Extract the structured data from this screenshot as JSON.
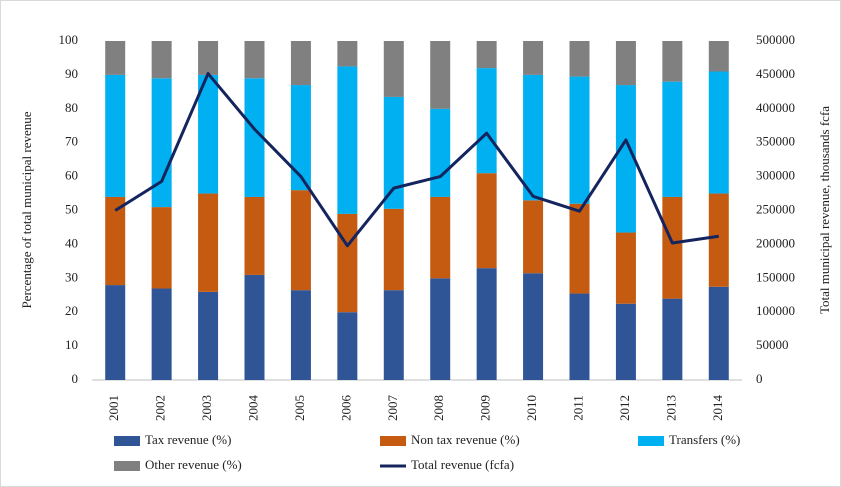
{
  "chart_data": {
    "type": "bar",
    "stacked": true,
    "y_label": "Percentage of total municipal revenue",
    "y2_label": "Total municipal revenue, thousands fcfa",
    "categories": [
      "2001",
      "2002",
      "2003",
      "2004",
      "2005",
      "2006",
      "2007",
      "2008",
      "2009",
      "2010",
      "2011",
      "2012",
      "2013",
      "2014"
    ],
    "ylim": [
      0,
      100
    ],
    "yticks": [
      0,
      10,
      20,
      30,
      40,
      50,
      60,
      70,
      80,
      90,
      100
    ],
    "y2lim": [
      0,
      500000
    ],
    "y2ticks": [
      0,
      50000,
      100000,
      150000,
      200000,
      250000,
      300000,
      350000,
      400000,
      450000,
      500000
    ],
    "grid": false,
    "series": [
      {
        "name": "Tax revenue (%)",
        "color": "#2f5597",
        "values": [
          28,
          27,
          26,
          31,
          26.5,
          20,
          26.5,
          30,
          33,
          31.5,
          25.5,
          22.5,
          24,
          27.5
        ]
      },
      {
        "name": "Non tax revenue (%)",
        "color": "#c55a11",
        "values": [
          26,
          24,
          29,
          23,
          29.5,
          29,
          24,
          24,
          28,
          21.5,
          26.5,
          21,
          30,
          27.5
        ]
      },
      {
        "name": "Transfers (%)",
        "color": "#00b0f0",
        "values": [
          36,
          38,
          35,
          35,
          31,
          43.5,
          33,
          26,
          31,
          37,
          37.5,
          43.5,
          34,
          36
        ]
      },
      {
        "name": "Other revenue (%)",
        "color": "#808080",
        "values": [
          10,
          11,
          10,
          11,
          13,
          7.5,
          16.5,
          20,
          8,
          10,
          10.5,
          13,
          12,
          9
        ]
      },
      {
        "name": "Total revenue (fcfa)",
        "type": "line",
        "axis": "y2",
        "color": "#14245e",
        "values": [
          250000,
          293000,
          452000,
          370000,
          300000,
          198000,
          283000,
          300000,
          364000,
          271000,
          249000,
          354000,
          202000,
          212000
        ]
      }
    ]
  }
}
